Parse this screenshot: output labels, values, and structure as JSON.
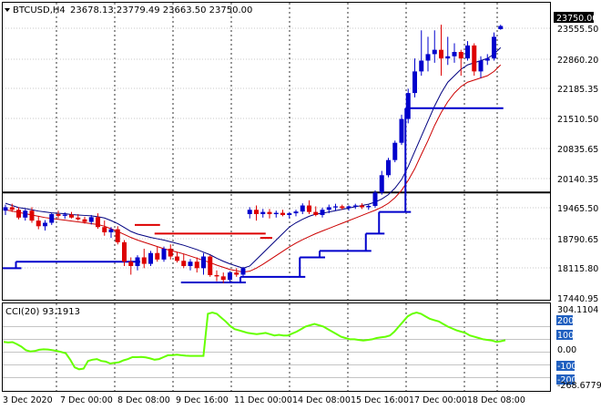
{
  "header": {
    "symbol": "BTCUSD,H4",
    "ohlc": "23678.13 23779.49 23663.50 23750.00"
  },
  "price_axis": {
    "labels": [
      "23555.50",
      "22860.20",
      "22185.35",
      "21510.50",
      "20835.65",
      "20140.35",
      "19465.50",
      "18790.65",
      "18115.80",
      "17440.95"
    ],
    "current_price": "23750.00"
  },
  "indicator": {
    "label": "CCI(20) 93.1913",
    "max_label": "304.1104",
    "min_label": "-268.6779",
    "levels": [
      {
        "label": "200",
        "boxed": true
      },
      {
        "label": "100",
        "boxed": true
      },
      {
        "label": "0.00",
        "boxed": false
      },
      {
        "label": "-100",
        "boxed": true
      },
      {
        "label": "-200",
        "boxed": true
      }
    ]
  },
  "time_axis": {
    "labels": [
      "3 Dec 2020",
      "7 Dec 00:00",
      "8 Dec 08:00",
      "9 Dec 16:00",
      "11 Dec 00:00",
      "14 Dec 08:00",
      "15 Dec 16:00",
      "17 Dec 00:00",
      "18 Dec 08:00"
    ]
  },
  "colors": {
    "bull": "#0000cc",
    "bear": "#dd0000",
    "ma_fast": "#000080",
    "ma_slow": "#cc0000",
    "support": "#0000cc",
    "resistance": "#dd0000",
    "cci": "#66ff00",
    "level_box": "#2060c0",
    "ref_line": "#000000"
  },
  "chart_data": {
    "type": "candlestick",
    "y_range": [
      17440.95,
      23930
    ],
    "horizontal_level": 19900,
    "candles": [
      {
        "o": 19480,
        "h": 19620,
        "l": 19380,
        "c": 19560
      },
      {
        "o": 19560,
        "h": 19640,
        "l": 19450,
        "c": 19500
      },
      {
        "o": 19500,
        "h": 19560,
        "l": 19280,
        "c": 19320
      },
      {
        "o": 19320,
        "h": 19520,
        "l": 19250,
        "c": 19480
      },
      {
        "o": 19480,
        "h": 19560,
        "l": 19200,
        "c": 19250
      },
      {
        "o": 19250,
        "h": 19360,
        "l": 19050,
        "c": 19120
      },
      {
        "o": 19120,
        "h": 19260,
        "l": 19020,
        "c": 19200
      },
      {
        "o": 19200,
        "h": 19430,
        "l": 19150,
        "c": 19400
      },
      {
        "o": 19400,
        "h": 19480,
        "l": 19300,
        "c": 19360
      },
      {
        "o": 19360,
        "h": 19440,
        "l": 19290,
        "c": 19390
      },
      {
        "o": 19390,
        "h": 19450,
        "l": 19300,
        "c": 19320
      },
      {
        "o": 19320,
        "h": 19400,
        "l": 19250,
        "c": 19280
      },
      {
        "o": 19280,
        "h": 19340,
        "l": 19180,
        "c": 19220
      },
      {
        "o": 19220,
        "h": 19380,
        "l": 19160,
        "c": 19330
      },
      {
        "o": 19330,
        "h": 19420,
        "l": 19060,
        "c": 19100
      },
      {
        "o": 19100,
        "h": 19250,
        "l": 18900,
        "c": 18980
      },
      {
        "o": 18980,
        "h": 19100,
        "l": 18850,
        "c": 19050
      },
      {
        "o": 19050,
        "h": 19120,
        "l": 18700,
        "c": 18750
      },
      {
        "o": 18750,
        "h": 18800,
        "l": 18200,
        "c": 18300
      },
      {
        "o": 18300,
        "h": 18400,
        "l": 18000,
        "c": 18200
      },
      {
        "o": 18200,
        "h": 18450,
        "l": 18100,
        "c": 18400
      },
      {
        "o": 18400,
        "h": 18600,
        "l": 18150,
        "c": 18250
      },
      {
        "o": 18250,
        "h": 18550,
        "l": 18200,
        "c": 18500
      },
      {
        "o": 18500,
        "h": 18650,
        "l": 18300,
        "c": 18350
      },
      {
        "o": 18350,
        "h": 18650,
        "l": 18300,
        "c": 18600
      },
      {
        "o": 18600,
        "h": 18700,
        "l": 18350,
        "c": 18420
      },
      {
        "o": 18420,
        "h": 18520,
        "l": 18280,
        "c": 18320
      },
      {
        "o": 18320,
        "h": 18480,
        "l": 18150,
        "c": 18200
      },
      {
        "o": 18200,
        "h": 18360,
        "l": 18100,
        "c": 18300
      },
      {
        "o": 18300,
        "h": 18400,
        "l": 18050,
        "c": 18150
      },
      {
        "o": 18150,
        "h": 18500,
        "l": 18000,
        "c": 18420
      },
      {
        "o": 18420,
        "h": 18450,
        "l": 17950,
        "c": 17990
      },
      {
        "o": 17990,
        "h": 18100,
        "l": 17850,
        "c": 17960
      },
      {
        "o": 17960,
        "h": 18050,
        "l": 17800,
        "c": 17880
      },
      {
        "o": 17880,
        "h": 18080,
        "l": 17820,
        "c": 18050
      },
      {
        "o": 18050,
        "h": 18150,
        "l": 17950,
        "c": 18000
      },
      {
        "o": 18000,
        "h": 18180,
        "l": 17950,
        "c": 18150
      },
      {
        "o": 19400,
        "h": 19560,
        "l": 19300,
        "c": 19500
      },
      {
        "o": 19500,
        "h": 19600,
        "l": 19250,
        "c": 19400
      },
      {
        "o": 19400,
        "h": 19520,
        "l": 19320,
        "c": 19450
      },
      {
        "o": 19450,
        "h": 19520,
        "l": 19300,
        "c": 19400
      },
      {
        "o": 19400,
        "h": 19480,
        "l": 19320,
        "c": 19430
      },
      {
        "o": 19430,
        "h": 19500,
        "l": 19350,
        "c": 19380
      },
      {
        "o": 19380,
        "h": 19450,
        "l": 19300,
        "c": 19420
      },
      {
        "o": 19420,
        "h": 19500,
        "l": 19350,
        "c": 19460
      },
      {
        "o": 19460,
        "h": 19650,
        "l": 19400,
        "c": 19600
      },
      {
        "o": 19600,
        "h": 19720,
        "l": 19400,
        "c": 19450
      },
      {
        "o": 19450,
        "h": 19580,
        "l": 19350,
        "c": 19380
      },
      {
        "o": 19380,
        "h": 19550,
        "l": 19320,
        "c": 19500
      },
      {
        "o": 19500,
        "h": 19620,
        "l": 19420,
        "c": 19560
      },
      {
        "o": 19560,
        "h": 19640,
        "l": 19480,
        "c": 19580
      },
      {
        "o": 19580,
        "h": 19620,
        "l": 19500,
        "c": 19540
      },
      {
        "o": 19540,
        "h": 19600,
        "l": 19480,
        "c": 19580
      },
      {
        "o": 19580,
        "h": 19640,
        "l": 19520,
        "c": 19600
      },
      {
        "o": 19600,
        "h": 19650,
        "l": 19520,
        "c": 19560
      },
      {
        "o": 19560,
        "h": 19620,
        "l": 19500,
        "c": 19590
      },
      {
        "o": 19590,
        "h": 19950,
        "l": 19550,
        "c": 19900
      },
      {
        "o": 19900,
        "h": 20400,
        "l": 19850,
        "c": 20300
      },
      {
        "o": 20300,
        "h": 20700,
        "l": 20250,
        "c": 20650
      },
      {
        "o": 20650,
        "h": 21100,
        "l": 20600,
        "c": 21050
      },
      {
        "o": 21050,
        "h": 21700,
        "l": 21000,
        "c": 21600
      },
      {
        "o": 21600,
        "h": 22300,
        "l": 21500,
        "c": 22200
      },
      {
        "o": 22200,
        "h": 23000,
        "l": 22100,
        "c": 22700
      },
      {
        "o": 22700,
        "h": 23650,
        "l": 22600,
        "c": 22950
      },
      {
        "o": 22950,
        "h": 23500,
        "l": 22700,
        "c": 23100
      },
      {
        "o": 23100,
        "h": 23650,
        "l": 22900,
        "c": 23200
      },
      {
        "o": 23200,
        "h": 23780,
        "l": 22600,
        "c": 23000
      },
      {
        "o": 23000,
        "h": 23500,
        "l": 22850,
        "c": 23050
      },
      {
        "o": 23050,
        "h": 23350,
        "l": 22900,
        "c": 23150
      },
      {
        "o": 23150,
        "h": 23200,
        "l": 22600,
        "c": 23000
      },
      {
        "o": 23000,
        "h": 23400,
        "l": 22950,
        "c": 23300
      },
      {
        "o": 23300,
        "h": 23350,
        "l": 22600,
        "c": 22700
      },
      {
        "o": 22700,
        "h": 23050,
        "l": 22550,
        "c": 22950
      },
      {
        "o": 22950,
        "h": 23100,
        "l": 22850,
        "c": 23000
      },
      {
        "o": 23000,
        "h": 23600,
        "l": 22950,
        "c": 23500
      },
      {
        "o": 23678.13,
        "h": 23779.49,
        "l": 23663.5,
        "c": 23750
      }
    ],
    "ma_fast": [
      19650,
      19600,
      19550,
      19530,
      19500,
      19470,
      19450,
      19430,
      19420,
      19410,
      19390,
      19380,
      19370,
      19360,
      19340,
      19310,
      19250,
      19180,
      19090,
      19000,
      18940,
      18900,
      18860,
      18830,
      18800,
      18760,
      18720,
      18680,
      18630,
      18580,
      18520,
      18460,
      18380,
      18310,
      18250,
      18200,
      18150,
      18200,
      18350,
      18500,
      18650,
      18800,
      18950,
      19100,
      19200,
      19280,
      19350,
      19400,
      19420,
      19450,
      19480,
      19510,
      19540,
      19570,
      19600,
      19630,
      19680,
      19750,
      19850,
      20000,
      20200,
      20500,
      20850,
      21200,
      21550,
      21900,
      22200,
      22450,
      22600,
      22750,
      22850,
      22900,
      22950,
      23000,
      23100,
      23250
    ],
    "ma_slow": [
      19500,
      19470,
      19440,
      19410,
      19380,
      19350,
      19320,
      19300,
      19280,
      19260,
      19240,
      19220,
      19200,
      19180,
      19160,
      19120,
      19060,
      19000,
      18930,
      18860,
      18800,
      18750,
      18700,
      18650,
      18600,
      18560,
      18520,
      18480,
      18430,
      18380,
      18330,
      18280,
      18220,
      18170,
      18120,
      18090,
      18060,
      18080,
      18150,
      18240,
      18340,
      18440,
      18540,
      18640,
      18730,
      18810,
      18880,
      18950,
      19010,
      19070,
      19130,
      19190,
      19250,
      19310,
      19370,
      19430,
      19490,
      19560,
      19650,
      19780,
      19950,
      20180,
      20450,
      20780,
      21100,
      21450,
      21750,
      22000,
      22200,
      22350,
      22450,
      22500,
      22550,
      22600,
      22700,
      22850
    ],
    "support_steps": [
      [
        0,
        2,
        18150
      ],
      [
        2,
        20,
        18300
      ],
      [
        27,
        36,
        17820
      ],
      [
        36,
        45,
        17950
      ],
      [
        45,
        48,
        18400
      ],
      [
        48,
        55,
        18550
      ],
      [
        55,
        57,
        18950
      ],
      [
        57,
        61,
        19450
      ],
      [
        61,
        75,
        21850
      ]
    ],
    "resistance_steps": [
      [
        20,
        23,
        19150
      ],
      [
        23,
        39,
        18950
      ],
      [
        39,
        40,
        18850
      ]
    ],
    "cci": [
      80,
      75,
      78,
      62,
      42,
      15,
      5,
      8,
      18,
      22,
      20,
      15,
      8,
      0,
      -10,
      -60,
      -120,
      -135,
      -130,
      -70,
      -60,
      -55,
      -70,
      -75,
      -90,
      -85,
      -80,
      -65,
      -55,
      -40,
      -40,
      -38,
      -42,
      -50,
      -60,
      -55,
      -40,
      -25,
      -25,
      -20,
      -25,
      -28,
      -30,
      -30,
      -30,
      -30,
      300,
      310,
      300,
      270,
      240,
      205,
      180,
      170,
      160,
      150,
      145,
      140,
      145,
      150,
      140,
      130,
      135,
      130,
      130,
      145,
      160,
      180,
      200,
      210,
      220,
      210,
      200,
      180,
      160,
      140,
      120,
      110,
      100,
      100,
      95,
      90,
      95,
      100,
      110,
      115,
      120,
      130,
      160,
      200,
      240,
      280,
      300,
      310,
      300,
      280,
      260,
      250,
      240,
      220,
      200,
      185,
      170,
      160,
      150,
      130,
      120,
      110,
      100,
      95,
      90,
      80,
      85,
      93
    ]
  }
}
